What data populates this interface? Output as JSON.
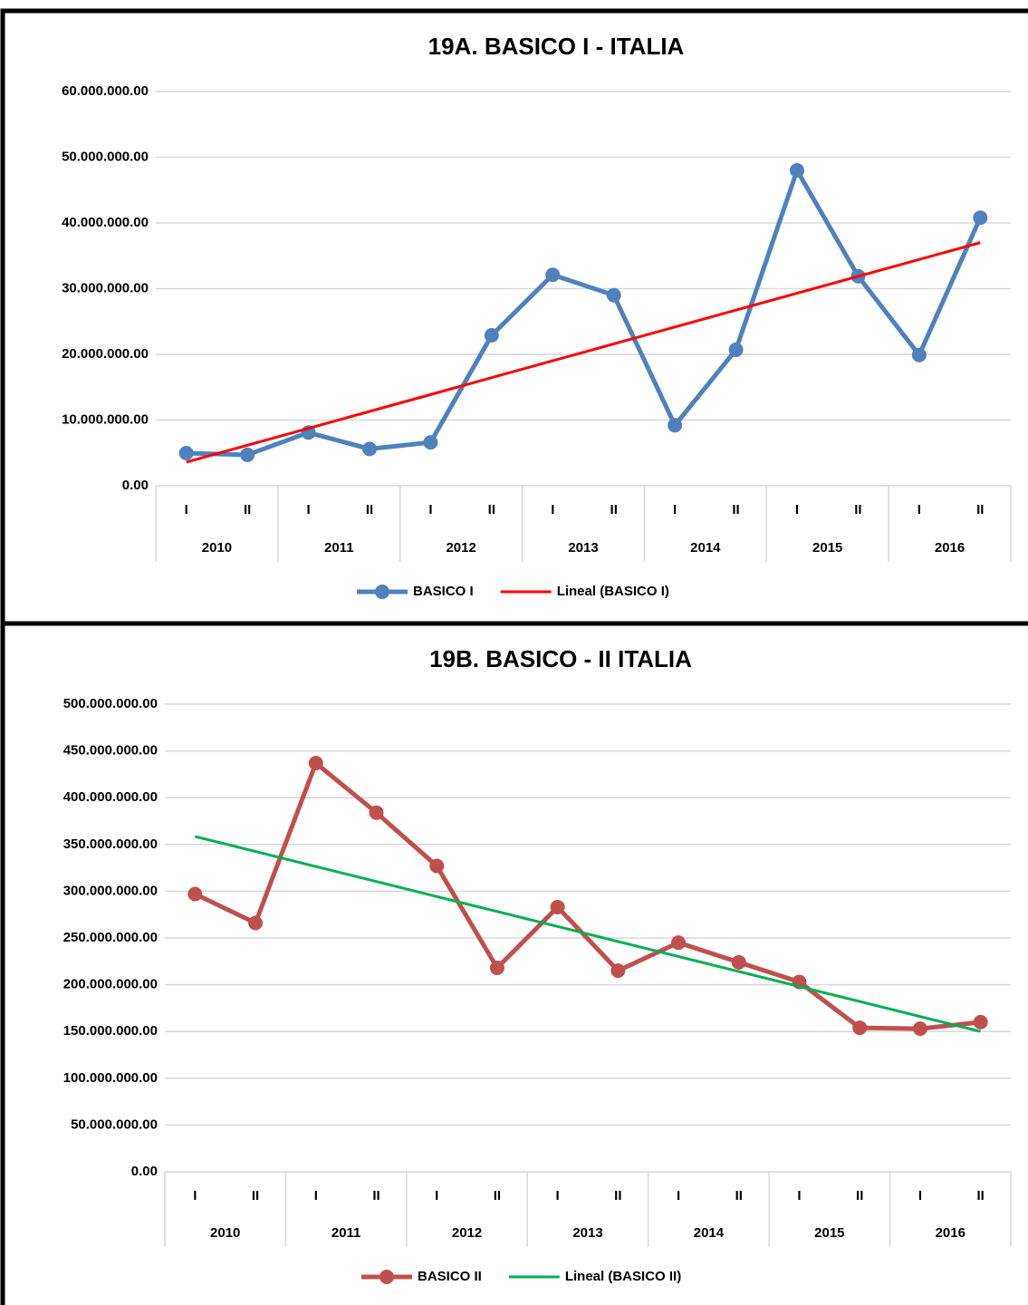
{
  "chart_data": [
    {
      "type": "line",
      "title": "19A. BASICO I - ITALIA",
      "categories": [
        "I",
        "II",
        "I",
        "II",
        "I",
        "II",
        "I",
        "II",
        "I",
        "II",
        "I",
        "II",
        "I",
        "II"
      ],
      "groups": [
        "2010",
        "2011",
        "2012",
        "2013",
        "2014",
        "2015",
        "2016"
      ],
      "series": [
        {
          "name": "BASICO I",
          "color": "#4f81bd",
          "markers": true,
          "values": [
            4970000,
            4700000,
            8100000,
            5600000,
            6600000,
            22900000,
            32100000,
            29000000,
            9200000,
            20700000,
            48000000,
            31900000,
            19900000,
            40800000
          ]
        },
        {
          "name": "Lineal (BASICO I)",
          "color": "#ff0000",
          "markers": false,
          "values": [
            3600000,
            6170000,
            8740000,
            11310000,
            13880000,
            16450000,
            19020000,
            21590000,
            24160000,
            26730000,
            29300000,
            31870000,
            34440000,
            37000000
          ]
        }
      ],
      "ylim": [
        0,
        60000000
      ],
      "yticks": [
        {
          "value": 0,
          "label": "0.00"
        },
        {
          "value": 10000000,
          "label": "10.000.000.00"
        },
        {
          "value": 20000000,
          "label": "20.000.000.00"
        },
        {
          "value": 30000000,
          "label": "30.000.000.00"
        },
        {
          "value": 40000000,
          "label": "40.000.000.00"
        },
        {
          "value": 50000000,
          "label": "50.000.000.00"
        },
        {
          "value": 60000000,
          "label": "60.000.000.00"
        }
      ],
      "grid": true,
      "legend": "bottom"
    },
    {
      "type": "line",
      "title": "19B. BASICO - II ITALIA",
      "categories": [
        "I",
        "II",
        "I",
        "II",
        "I",
        "II",
        "I",
        "II",
        "I",
        "II",
        "I",
        "II",
        "I",
        "II"
      ],
      "groups": [
        "2010",
        "2011",
        "2012",
        "2013",
        "2014",
        "2015",
        "2016"
      ],
      "series": [
        {
          "name": "BASICO II",
          "color": "#c0504d",
          "markers": true,
          "values": [
            297000000,
            266000000,
            437000000,
            384000000,
            327000000,
            218000000,
            283000000,
            215000000,
            245000000,
            224000000,
            203000000,
            154000000,
            153000000,
            160000000
          ]
        },
        {
          "name": "Lineal (BASICO II)",
          "color": "#00b050",
          "markers": false,
          "values": [
            358500000,
            342500000,
            326400000,
            310400000,
            294300000,
            278300000,
            262300000,
            246200000,
            230200000,
            214100000,
            198100000,
            182100000,
            166000000,
            150000000
          ]
        }
      ],
      "ylim": [
        0,
        500000000
      ],
      "yticks": [
        {
          "value": 0,
          "label": "0.00"
        },
        {
          "value": 50000000,
          "label": "50.000.000.00"
        },
        {
          "value": 100000000,
          "label": "100.000.000.00"
        },
        {
          "value": 150000000,
          "label": "150.000.000.00"
        },
        {
          "value": 200000000,
          "label": "200.000.000.00"
        },
        {
          "value": 250000000,
          "label": "250.000.000.00"
        },
        {
          "value": 300000000,
          "label": "300.000.000.00"
        },
        {
          "value": 350000000,
          "label": "350.000.000.00"
        },
        {
          "value": 400000000,
          "label": "400.000.000.00"
        },
        {
          "value": 450000000,
          "label": "450.000.000.00"
        },
        {
          "value": 500000000,
          "label": "500.000.000.00"
        }
      ],
      "grid": true,
      "legend": "bottom"
    }
  ]
}
